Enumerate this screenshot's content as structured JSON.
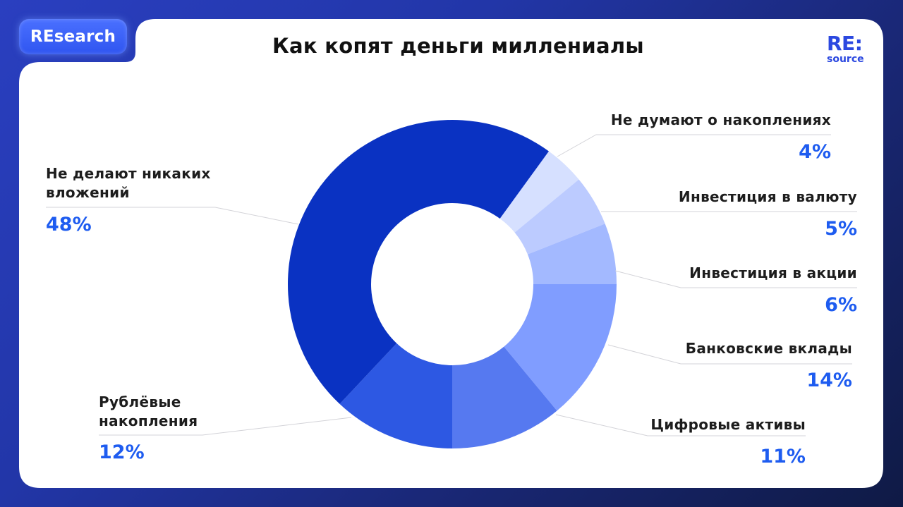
{
  "badge": {
    "label": "REsearch"
  },
  "header": {
    "title": "Как копят деньги миллениалы"
  },
  "logo": {
    "top": "RE:",
    "bottom": "source"
  },
  "colors": {
    "accent": "#1e5cf0",
    "brand": "#2b48e0",
    "segments": [
      "#d6e0ff",
      "#bccbff",
      "#a3b9ff",
      "#809dff",
      "#5679f0",
      "#2d58e3",
      "#0a32c2"
    ]
  },
  "chart_data": {
    "type": "pie",
    "subtype": "donut",
    "title": "Как копят деньги миллениалы",
    "categories": [
      "Не думают о накоплениях",
      "Инвестиция в валюту",
      "Инвестиция в акции",
      "Банковские вклады",
      "Цифровые активы",
      "Рублёвые накопления",
      "Не делают никаких вложений"
    ],
    "values": [
      4,
      5,
      6,
      14,
      11,
      12,
      48
    ],
    "unit": "%",
    "legend_position": "callout labels around chart"
  },
  "labels": {
    "no_think": {
      "text": "Не думают о накоплениях",
      "pct": "4%"
    },
    "currency": {
      "text": "Инвестиция в валюту",
      "pct": "5%"
    },
    "stocks": {
      "text": "Инвестиция в акции",
      "pct": "6%"
    },
    "bank": {
      "text": "Банковские вклады",
      "pct": "14%"
    },
    "digital": {
      "text": "Цифровые активы",
      "pct": "11%"
    },
    "ruble_l1": "Рублёвые",
    "ruble_l2": "накопления",
    "ruble_pct": "12%",
    "none_l1": "Не делают никаких",
    "none_l2": "вложений",
    "none_pct": "48%"
  }
}
